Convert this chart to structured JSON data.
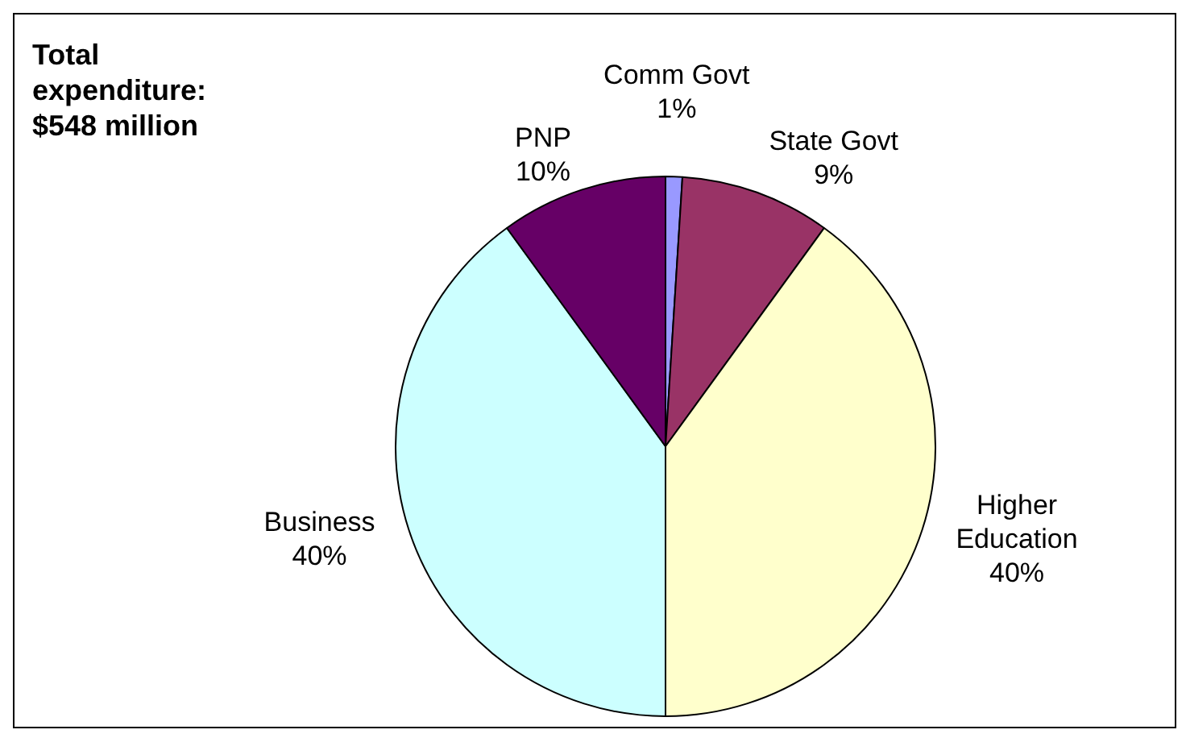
{
  "chart_data": {
    "type": "pie",
    "title": "Total expenditure: $548 million",
    "categories": [
      "Comm Govt",
      "State Govt",
      "Higher Education",
      "Business",
      "PNP"
    ],
    "values": [
      1,
      9,
      40,
      40,
      10
    ],
    "value_labels": [
      "1%",
      "9%",
      "40%",
      "40%",
      "10%"
    ],
    "colors": [
      "#9999ff",
      "#993366",
      "#ffffcc",
      "#ccffff",
      "#660066"
    ],
    "legend": false
  }
}
